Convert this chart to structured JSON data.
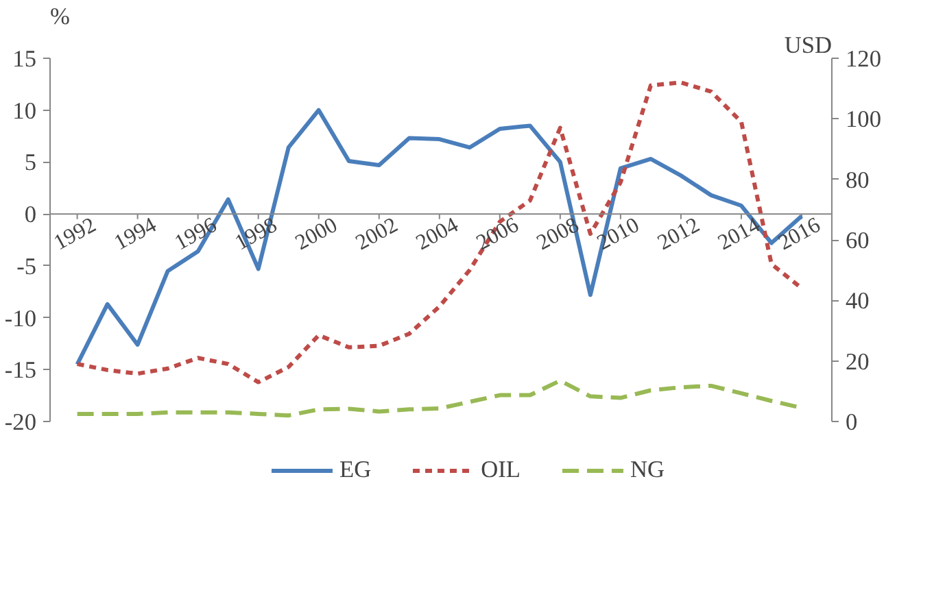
{
  "chart_data": {
    "type": "line",
    "ylabel": "%",
    "y2label": "USD",
    "x": [
      1992,
      1993,
      1994,
      1995,
      1996,
      1997,
      1998,
      1999,
      2000,
      2001,
      2002,
      2003,
      2004,
      2005,
      2006,
      2007,
      2008,
      2009,
      2010,
      2011,
      2012,
      2013,
      2014,
      2015,
      2016
    ],
    "xlim": [
      1991.1,
      2017
    ],
    "xticks": [
      1992,
      1994,
      1996,
      1998,
      2000,
      2002,
      2004,
      2006,
      2008,
      2010,
      2012,
      2014,
      2016
    ],
    "ylim": [
      -20,
      15
    ],
    "yticks": [
      -20,
      -15,
      -10,
      -5,
      0,
      5,
      10,
      15
    ],
    "y2lim": [
      0,
      120
    ],
    "y2ticks": [
      0,
      20,
      40,
      60,
      80,
      100,
      120
    ],
    "series": [
      {
        "name": "EG",
        "color": "#4a7ebb",
        "line_style": "solid",
        "values": [
          -14.5,
          -8.7,
          -12.6,
          -5.5,
          -3.6,
          1.4,
          -5.3,
          6.4,
          10.0,
          5.1,
          4.7,
          7.3,
          7.2,
          6.4,
          8.2,
          8.5,
          5.0,
          -7.8,
          4.4,
          5.3,
          3.7,
          1.8,
          0.8,
          -2.8,
          -0.2
        ]
      },
      {
        "name": "OIL",
        "color": "#be4b48",
        "line_style": "dotted",
        "axis": "y2",
        "values": [
          19,
          17,
          15.8,
          17.5,
          21,
          19,
          13,
          18,
          28.5,
          24.5,
          25,
          29,
          38,
          50,
          66,
          73,
          97,
          62,
          79,
          111,
          112,
          109,
          99,
          52,
          44
        ]
      },
      {
        "name": "NG",
        "color": "#98b954",
        "line_style": "dashed",
        "axis": "y2",
        "values": [
          2.5,
          2.5,
          2.5,
          3,
          3,
          3,
          2.5,
          2,
          4,
          4.2,
          3.3,
          4,
          4.3,
          6.5,
          8.7,
          8.7,
          13.5,
          8.3,
          7.8,
          10.3,
          11.3,
          11.8,
          9.3,
          6.8,
          4.5
        ]
      }
    ],
    "grid": false,
    "legend": "bottom"
  }
}
